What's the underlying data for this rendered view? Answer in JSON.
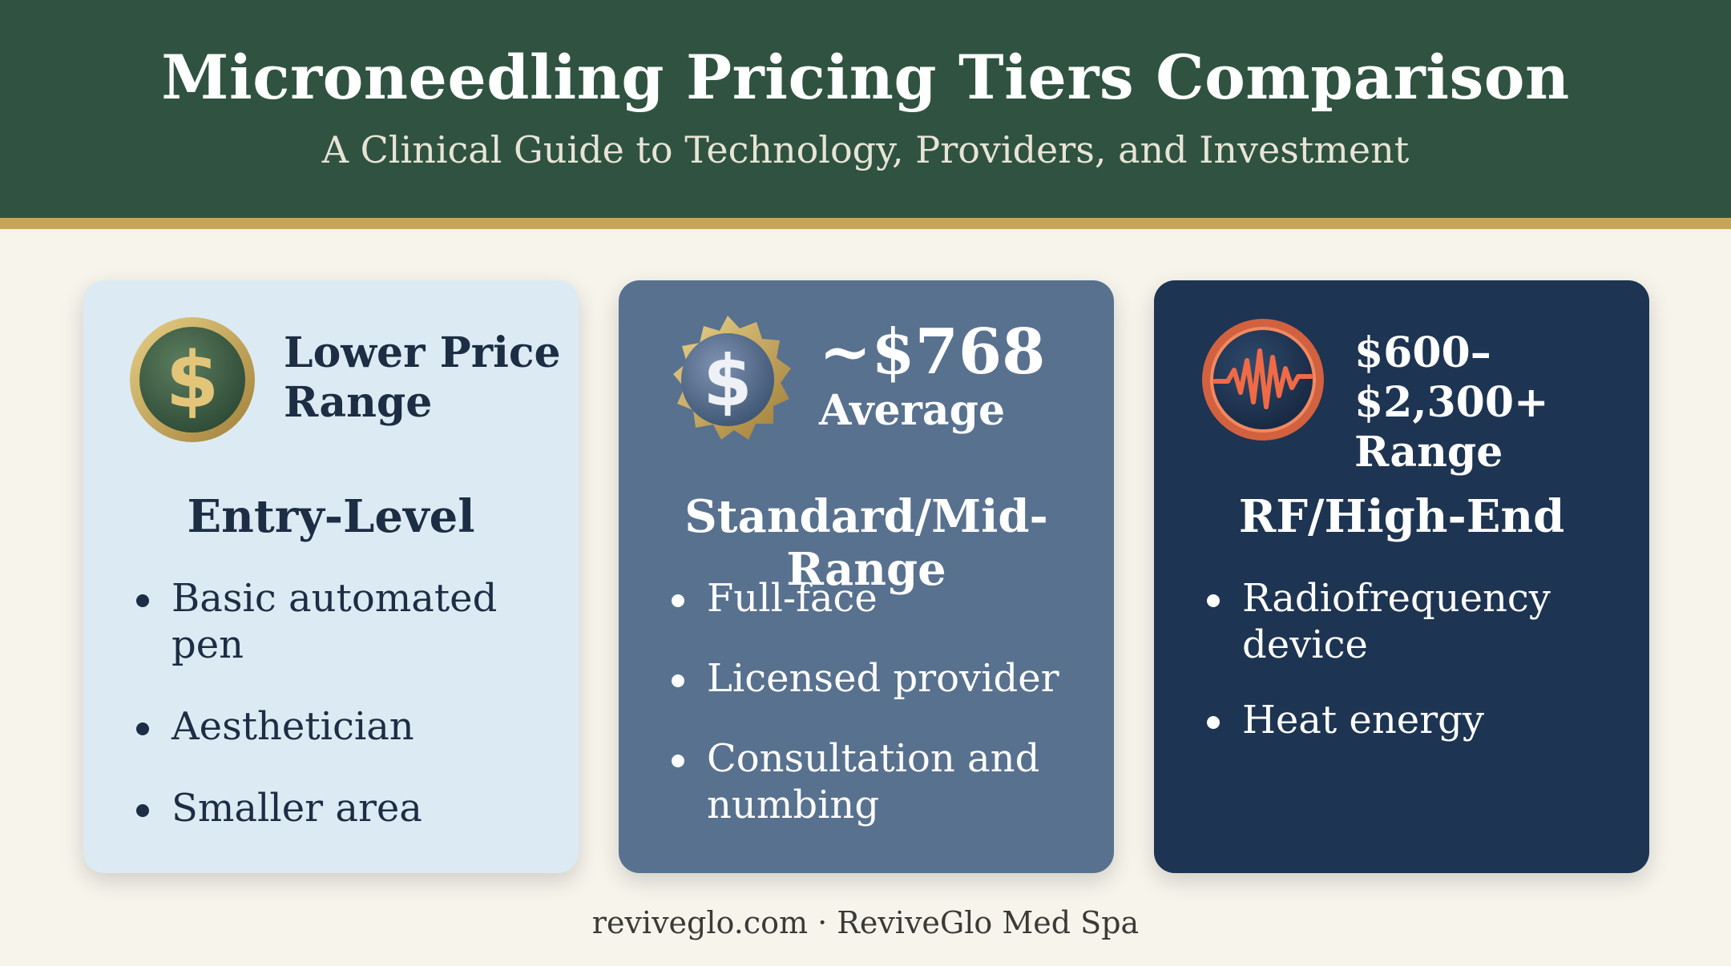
{
  "header": {
    "title": "Microneedling Pricing Tiers Comparison",
    "subtitle": "A Clinical Guide to Technology, Providers, and Investment"
  },
  "cards": [
    {
      "icon": "dollar-coin-icon",
      "price_line1": "Lower Price",
      "price_line2": "Range",
      "tier": "Entry-Level",
      "bullets": [
        "Basic automated pen",
        "Aesthetician",
        "Smaller area"
      ]
    },
    {
      "icon": "dollar-seal-icon",
      "price_line1": "~$768",
      "price_line2": "Average",
      "tier": "Standard/Mid-Range",
      "bullets": [
        "Full-face",
        "Licensed provider",
        "Consultation and numbing"
      ]
    },
    {
      "icon": "pulse-waveform-icon",
      "price_line1": "$600–$2,300+",
      "price_line2": "Range",
      "tier": "RF/High-End",
      "bullets": [
        "Radiofrequency device",
        "Heat energy"
      ]
    }
  ],
  "footer": "reviveglo.com · ReviveGlo Med Spa"
}
